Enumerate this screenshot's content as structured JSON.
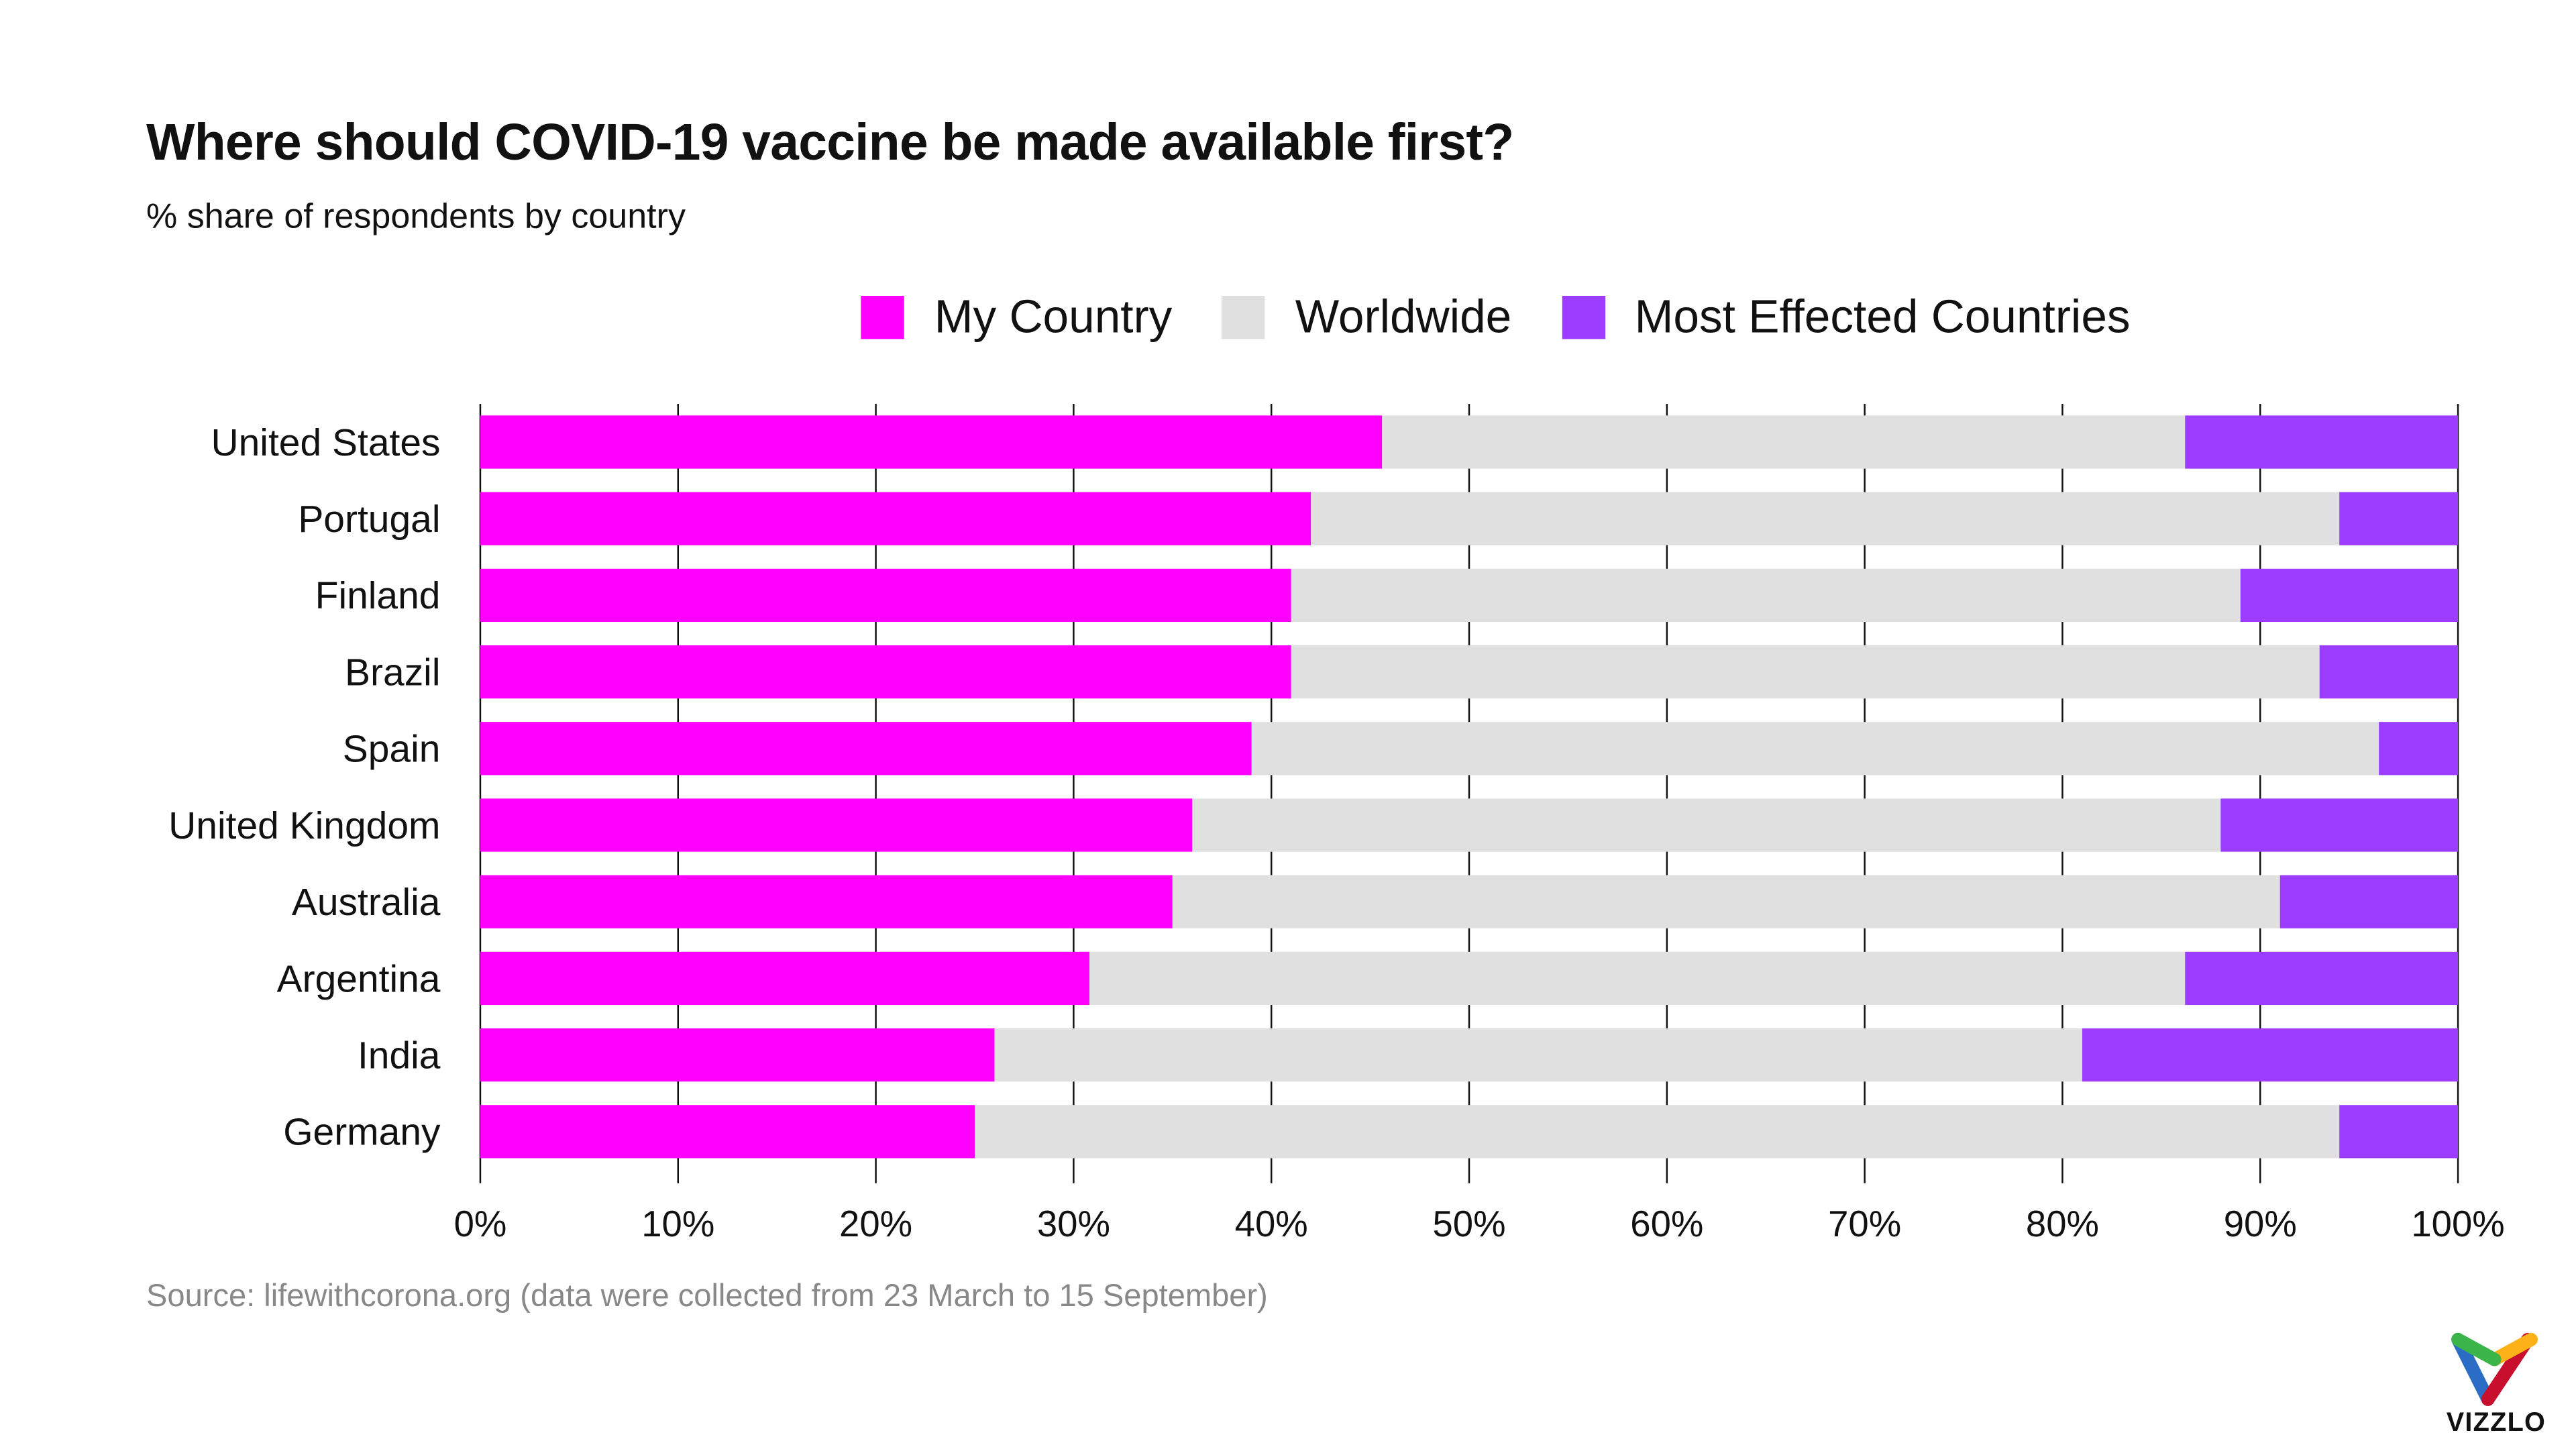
{
  "chart_data": {
    "type": "bar",
    "orientation": "horizontal",
    "stacked": true,
    "title": "Where should COVID-19 vaccine be made available first?",
    "subtitle": "% share of respondents by country",
    "source": "Source: lifewithcorona.org (data were collected from 23 March to 15 September)",
    "categories": [
      "United States",
      "Portugal",
      "Finland",
      "Brazil",
      "Spain",
      "United Kingdom",
      "Australia",
      "Argentina",
      "India",
      "Germany"
    ],
    "series": [
      {
        "name": "My Country",
        "color": "#ff00ff",
        "values": [
          45.6,
          42,
          41,
          41,
          39,
          36,
          35,
          30.8,
          26,
          25
        ]
      },
      {
        "name": "Worldwide",
        "color": "#e0e0e0",
        "values": [
          40.6,
          52,
          48,
          52,
          57,
          52,
          56,
          55.4,
          55,
          69
        ]
      },
      {
        "name": "Most Effected Countries",
        "color": "#9b3cff",
        "values": [
          13.8,
          6,
          11,
          7,
          4,
          12,
          9,
          13.8,
          19,
          6
        ]
      }
    ],
    "xlim": [
      0,
      100
    ],
    "xticks": [
      "0%",
      "10%",
      "20%",
      "30%",
      "40%",
      "50%",
      "60%",
      "70%",
      "80%",
      "90%",
      "100%"
    ],
    "grid": true,
    "legend_position": "top"
  },
  "logo": {
    "text": "VIZZLO",
    "colors": [
      "#3bb54a",
      "#fbb117",
      "#2b6cc4",
      "#c8102e"
    ]
  }
}
